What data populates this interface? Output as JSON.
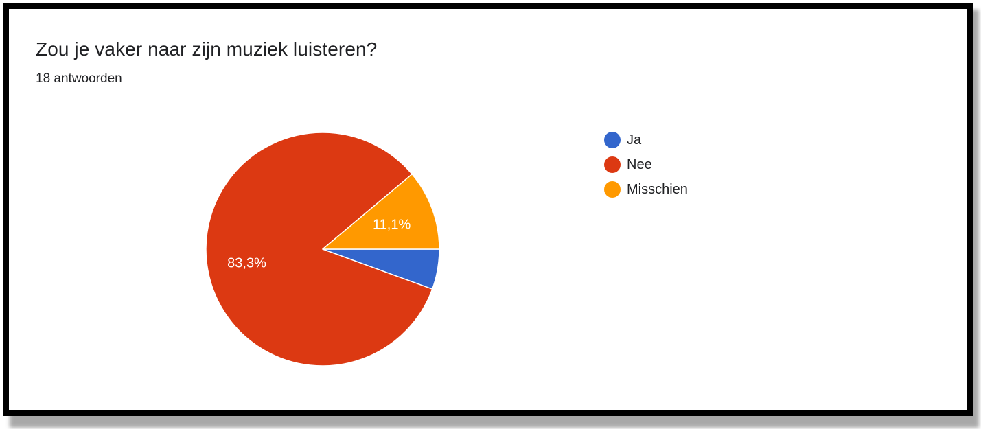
{
  "chart_data": {
    "type": "pie",
    "title": "Zou je vaker naar zijn muziek luisteren?",
    "subtitle": "18 antwoorden",
    "categories": [
      "Ja",
      "Nee",
      "Misschien"
    ],
    "values": [
      1,
      15,
      2
    ],
    "percent_labels": [
      "",
      "83,3%",
      "11,1%"
    ],
    "colors": [
      "#3366cc",
      "#dc3912",
      "#ff9900"
    ],
    "legend_position": "right"
  }
}
